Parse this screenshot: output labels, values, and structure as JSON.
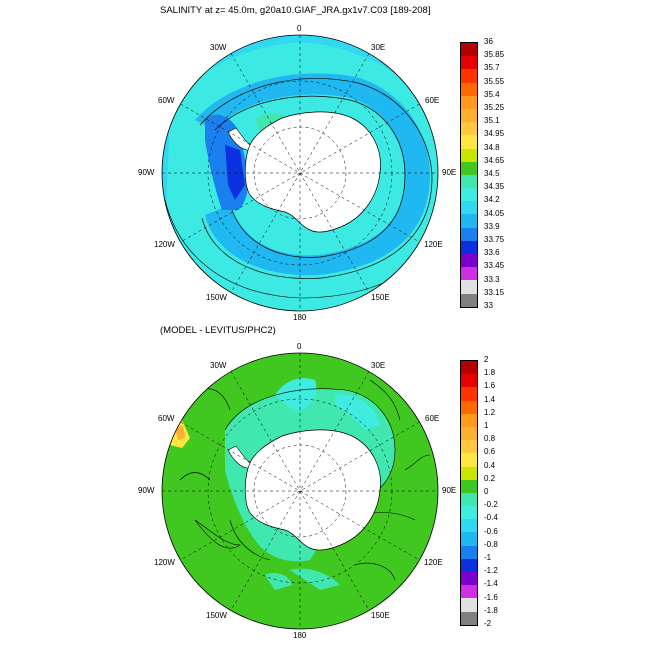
{
  "panel1": {
    "title": "SALINITY at z=  45.0m, g20a10.GIAF_JRA.gx1v7.C03 [189-208]",
    "lon_labels": {
      "n": "0",
      "ne30": "30E",
      "ne60": "60E",
      "e": "90E",
      "se120": "120E",
      "se150": "150E",
      "s": "180",
      "sw150": "150W",
      "sw120": "120W",
      "w": "90W",
      "nw60": "60W",
      "nw30": "30W"
    },
    "colorbar": {
      "labels": [
        "36",
        "35.85",
        "35.7",
        "35.55",
        "35.4",
        "35.25",
        "35.1",
        "34.95",
        "34.8",
        "34.65",
        "34.5",
        "34.35",
        "34.2",
        "34.05",
        "33.9",
        "33.75",
        "33.6",
        "33.45",
        "33.3",
        "33.15",
        "33"
      ],
      "colors": [
        "#b40000",
        "#e60000",
        "#ff3300",
        "#ff6a00",
        "#ff9a1a",
        "#ffb030",
        "#ffc840",
        "#ffe640",
        "#c8e600",
        "#40c820",
        "#40e8b0",
        "#40ece0",
        "#30d8f0",
        "#20b8f0",
        "#1a80f0",
        "#0a30e0",
        "#7a00cc",
        "#cc30e0",
        "#e0e0e0",
        "#808080"
      ]
    }
  },
  "panel2": {
    "title": "(MODEL - LEVITUS/PHC2)",
    "lon_labels": {
      "n": "0",
      "ne30": "30E",
      "ne60": "60E",
      "e": "90E",
      "se120": "120E",
      "se150": "150E",
      "s": "180",
      "sw150": "150W",
      "sw120": "120W",
      "w": "90W",
      "nw60": "60W",
      "nw30": "30W"
    },
    "colorbar": {
      "labels": [
        "2",
        "1.8",
        "1.6",
        "1.4",
        "1.2",
        "1",
        "0.8",
        "0.6",
        "0.4",
        "0.2",
        "0",
        "-0.2",
        "-0.4",
        "-0.6",
        "-0.8",
        "-1",
        "-1.2",
        "-1.4",
        "-1.6",
        "-1.8",
        "-2"
      ],
      "colors": [
        "#b40000",
        "#e60000",
        "#ff3300",
        "#ff6a00",
        "#ff9a1a",
        "#ffb030",
        "#ffc840",
        "#ffe640",
        "#c8e600",
        "#40c820",
        "#40e8b0",
        "#40ece0",
        "#30d8f0",
        "#20b8f0",
        "#1a80f0",
        "#0a30e0",
        "#7a00cc",
        "#cc30e0",
        "#e0e0e0",
        "#808080"
      ]
    }
  },
  "colors": {
    "ocean_cyan": "#30d8f0",
    "ocean_light": "#40ece0",
    "ocean_blue": "#20b8f0",
    "ocean_deep": "#1a80f0",
    "diff_green": "#40c820",
    "diff_light": "#40e8b0",
    "land": "#ffffff"
  }
}
